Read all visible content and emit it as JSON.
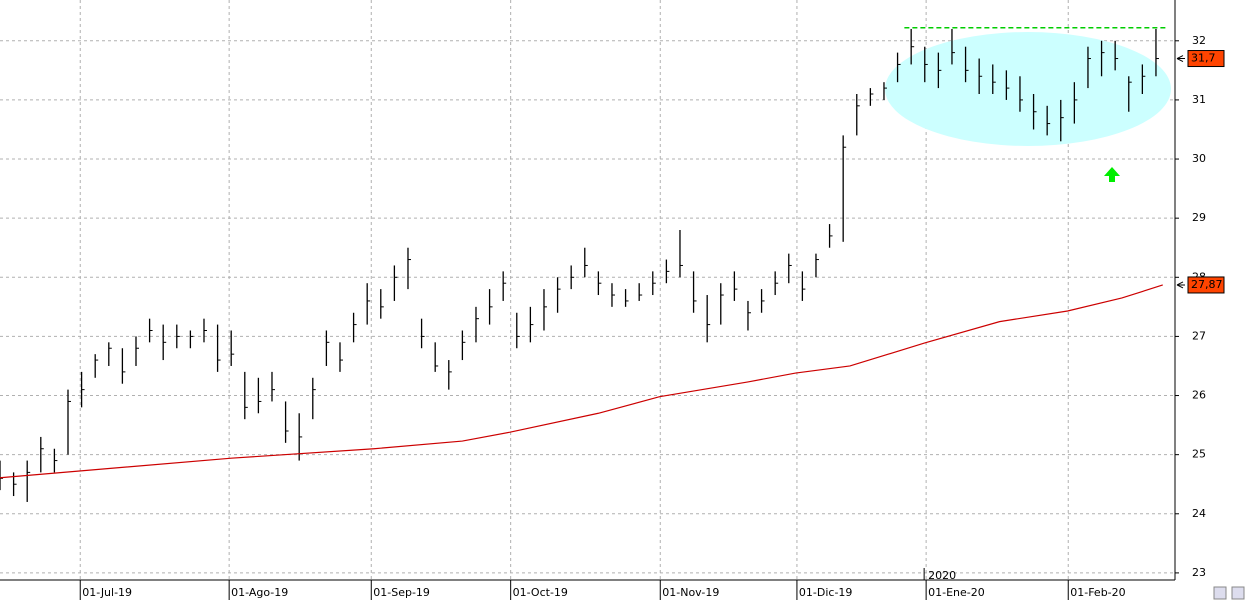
{
  "chart_data": {
    "type": "ohlc",
    "xlim": [
      0,
      172.8
    ],
    "xticks": [
      {
        "value": 11.8,
        "label": "01-Jul-19"
      },
      {
        "value": 33.7,
        "label": "01-Ago-19"
      },
      {
        "value": 54.6,
        "label": "01-Sep-19"
      },
      {
        "value": 75.1,
        "label": "01-Oct-19"
      },
      {
        "value": 97.1,
        "label": "01-Nov-19"
      },
      {
        "value": 117.2,
        "label": "01-Dic-19"
      },
      {
        "value": 136.2,
        "label": "01-Ene-20"
      },
      {
        "value": 157.1,
        "label": "01-Feb-20"
      }
    ],
    "year_label": "2020",
    "ylim": [
      22.88,
      32.69
    ],
    "yticks": [
      23,
      24,
      25,
      26,
      27,
      28,
      29,
      30,
      31,
      32
    ],
    "grid": true,
    "color": "#000000",
    "x": [
      0,
      2,
      4,
      6,
      8,
      10,
      12,
      14,
      16,
      18,
      20,
      22,
      24,
      26,
      28,
      30,
      32,
      34,
      36,
      38,
      40,
      42,
      44,
      46,
      48,
      50,
      52,
      54,
      56,
      58,
      60,
      62,
      64,
      66,
      68,
      70,
      72,
      74,
      76,
      78,
      80,
      82,
      84,
      86,
      88,
      90,
      92,
      94,
      96,
      98,
      100,
      102,
      104,
      106,
      108,
      110,
      112,
      114,
      116,
      118,
      120,
      122,
      124,
      126,
      128,
      130,
      132,
      134,
      136,
      138,
      140,
      142,
      144,
      146,
      148,
      150,
      152,
      154,
      156,
      158,
      160,
      162,
      164,
      166,
      168,
      170
    ],
    "high": [
      24.9,
      24.7,
      24.9,
      25.3,
      25.1,
      26.1,
      26.4,
      26.7,
      26.9,
      26.8,
      27.0,
      27.3,
      27.2,
      27.2,
      27.1,
      27.3,
      27.2,
      27.1,
      26.4,
      26.3,
      26.4,
      25.9,
      25.7,
      26.3,
      27.1,
      26.9,
      27.4,
      27.9,
      27.8,
      28.2,
      28.5,
      27.3,
      26.9,
      26.6,
      27.1,
      27.5,
      27.8,
      28.1,
      27.4,
      27.5,
      27.8,
      28.0,
      28.2,
      28.5,
      28.1,
      27.9,
      27.8,
      27.9,
      28.1,
      28.3,
      28.8,
      28.1,
      27.7,
      27.9,
      28.1,
      27.6,
      27.8,
      28.1,
      28.4,
      28.1,
      28.4,
      28.9,
      30.4,
      31.1,
      31.2,
      31.3,
      31.8,
      32.2,
      31.9,
      31.8,
      32.2,
      31.9,
      31.7,
      31.6,
      31.5,
      31.4,
      31.1,
      30.9,
      31.0,
      31.3,
      31.9,
      32.0,
      32.0,
      31.4,
      31.6,
      32.2
    ],
    "low": [
      24.4,
      24.3,
      24.2,
      24.7,
      24.7,
      25.0,
      25.8,
      26.3,
      26.5,
      26.2,
      26.5,
      26.9,
      26.6,
      26.8,
      26.8,
      26.9,
      26.4,
      26.5,
      25.6,
      25.7,
      25.9,
      25.2,
      24.9,
      25.6,
      26.5,
      26.4,
      26.9,
      27.2,
      27.3,
      27.6,
      27.8,
      26.8,
      26.4,
      26.1,
      26.6,
      26.9,
      27.2,
      27.6,
      26.8,
      26.9,
      27.1,
      27.4,
      27.8,
      28.0,
      27.7,
      27.5,
      27.5,
      27.6,
      27.7,
      27.9,
      28.0,
      27.4,
      26.9,
      27.2,
      27.6,
      27.1,
      27.4,
      27.7,
      27.9,
      27.6,
      28.0,
      28.5,
      28.6,
      30.4,
      30.9,
      31.0,
      31.3,
      31.6,
      31.3,
      31.2,
      31.6,
      31.3,
      31.1,
      31.1,
      31.0,
      30.8,
      30.5,
      30.4,
      30.3,
      30.6,
      31.2,
      31.4,
      31.5,
      30.8,
      31.1,
      31.4
    ],
    "close": [
      24.6,
      24.5,
      24.7,
      25.1,
      24.9,
      25.9,
      26.1,
      26.6,
      26.8,
      26.4,
      26.8,
      27.1,
      26.9,
      27.0,
      27.0,
      27.1,
      26.6,
      26.7,
      25.8,
      25.9,
      26.1,
      25.4,
      25.3,
      26.1,
      26.9,
      26.6,
      27.2,
      27.6,
      27.5,
      28.0,
      28.3,
      27.0,
      26.5,
      26.4,
      26.9,
      27.3,
      27.5,
      27.9,
      27.0,
      27.2,
      27.5,
      27.8,
      28.0,
      28.2,
      27.9,
      27.7,
      27.6,
      27.7,
      27.9,
      28.1,
      28.2,
      27.6,
      27.2,
      27.7,
      27.8,
      27.4,
      27.6,
      27.9,
      28.2,
      27.8,
      28.3,
      28.7,
      30.2,
      30.9,
      31.1,
      31.2,
      31.6,
      31.9,
      31.6,
      31.5,
      31.8,
      31.5,
      31.4,
      31.3,
      31.2,
      31.0,
      30.8,
      30.6,
      30.7,
      31.0,
      31.7,
      31.8,
      31.7,
      31.3,
      31.4,
      31.7
    ],
    "moving_average": {
      "color": "#cc0000",
      "x": [
        0,
        34,
        55,
        68,
        75,
        88,
        97,
        110,
        117,
        125,
        136,
        147,
        157,
        165,
        171
      ],
      "values": [
        24.61,
        24.94,
        25.1,
        25.23,
        25.38,
        25.7,
        25.98,
        26.23,
        26.38,
        26.5,
        26.89,
        27.25,
        27.43,
        27.65,
        27.87
      ]
    },
    "level_line": {
      "value": 32.22,
      "color": "#00cc00",
      "x": [
        133,
        171.5
      ]
    },
    "last_price": {
      "value": 31.7,
      "label": "31,7"
    },
    "ma_last": {
      "value": 27.87,
      "label": "27,87"
    }
  }
}
